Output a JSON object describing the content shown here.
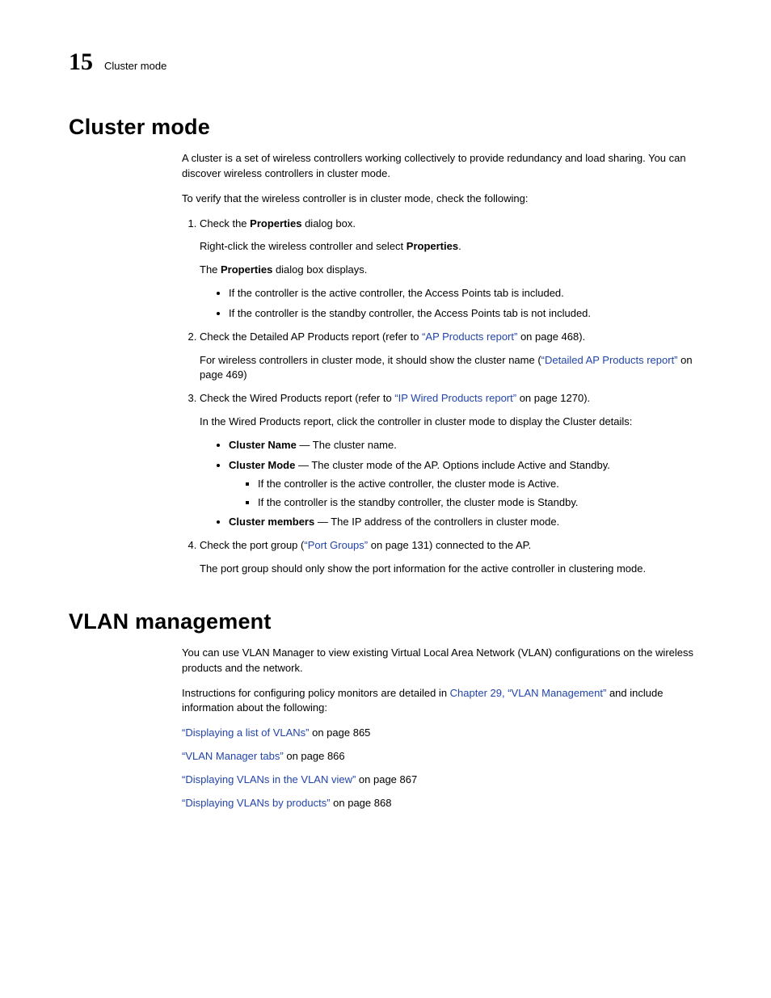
{
  "colors": {
    "link": "#2244aa",
    "text": "#000000",
    "background": "#ffffff"
  },
  "header": {
    "chapter_number": "15",
    "chapter_label": "Cluster mode"
  },
  "section1": {
    "title": "Cluster mode",
    "intro1": "A cluster is a set of wireless controllers working collectively to provide redundancy and load sharing. You can discover wireless controllers in cluster mode.",
    "intro2": "To verify that the wireless controller is in cluster mode, check the following:",
    "step1": {
      "lead1": "Check the ",
      "b1": "Properties",
      "lead2": " dialog box.",
      "p2a": "Right-click the wireless controller and select ",
      "p2b": "Properties",
      "p2c": ".",
      "p3a": "The ",
      "p3b": "Properties",
      "p3c": " dialog box displays.",
      "bul1": "If the controller is the active controller, the Access Points tab is included.",
      "bul2": "If the controller is the standby controller, the Access Points tab is not included."
    },
    "step2": {
      "lead1": "Check the Detailed AP Products report (refer to ",
      "link1": "“AP Products report”",
      "lead2": " on page 468).",
      "p2a": "For wireless controllers in cluster mode, it should show the cluster name (",
      "link2": "“Detailed AP Products report”",
      "p2b": " on page 469)"
    },
    "step3": {
      "lead1": "Check the Wired Products report (refer to ",
      "link1": "“IP Wired Products report”",
      "lead2": " on page 1270).",
      "p2": "In the Wired Products report, click the controller in cluster mode to display the Cluster details:",
      "b1_name": "Cluster Name",
      "b1_rest": " — The cluster name.",
      "b2_name": "Cluster Mode",
      "b2_rest": " — The cluster mode of the AP. Options include Active and Standby.",
      "sq1": "If the controller is the active controller, the cluster mode is Active.",
      "sq2": "If the controller is the standby controller, the cluster mode is Standby.",
      "b3_name": "Cluster members",
      "b3_rest": " — The IP address of the controllers in cluster mode."
    },
    "step4": {
      "lead1": "Check the port group (",
      "link1": "“Port Groups”",
      "lead2": " on page 131) connected to the AP.",
      "p2": "The port group should only show the port information for the active controller in clustering mode."
    }
  },
  "section2": {
    "title": "VLAN management",
    "p1": "You can use VLAN Manager to view existing Virtual Local Area Network (VLAN) configurations on the wireless products and the network.",
    "p2a": "Instructions for configuring policy monitors are detailed in ",
    "p2link": "Chapter 29, “VLAN Management”",
    "p2b": " and include information about the following:",
    "l1": {
      "link": "“Displaying a list of VLANs”",
      "rest": " on page 865"
    },
    "l2": {
      "link": "“VLAN Manager tabs”",
      "rest": " on page 866"
    },
    "l3": {
      "link": "“Displaying VLANs in the VLAN view”",
      "rest": " on page 867"
    },
    "l4": {
      "link": "“Displaying VLANs by products”",
      "rest": " on page 868"
    }
  }
}
